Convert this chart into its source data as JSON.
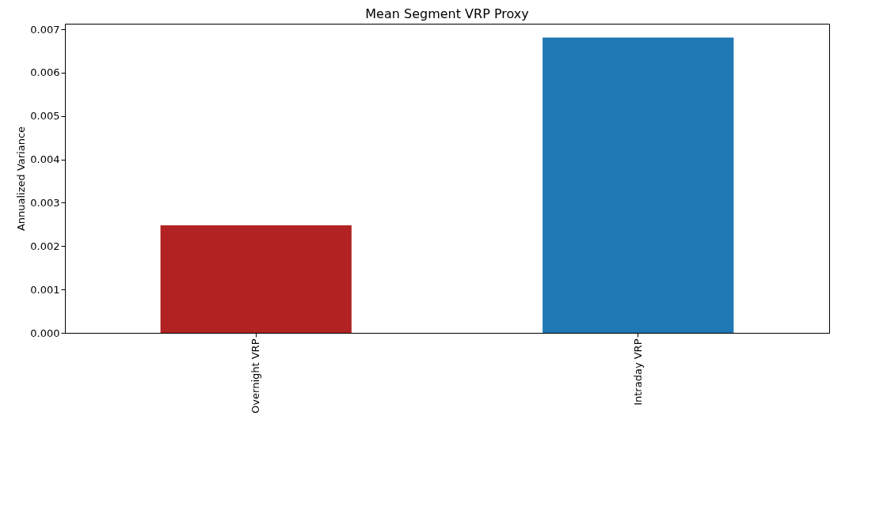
{
  "chart_data": {
    "type": "bar",
    "title": "Mean Segment VRP Proxy",
    "ylabel": "Annualized Variance",
    "categories": [
      "Overnight VRP",
      "Intraday VRP"
    ],
    "values": [
      0.00248,
      0.00681
    ],
    "colors": [
      "#b22222",
      "#1f77b4"
    ],
    "ylim": [
      0,
      0.00713
    ],
    "yticks": [
      {
        "value": 0,
        "label": "0.000"
      },
      {
        "value": 0.001,
        "label": "0.001"
      },
      {
        "value": 0.002,
        "label": "0.002"
      },
      {
        "value": 0.003,
        "label": "0.003"
      },
      {
        "value": 0.004,
        "label": "0.004"
      },
      {
        "value": 0.005,
        "label": "0.005"
      },
      {
        "value": 0.006,
        "label": "0.006"
      },
      {
        "value": 0.007,
        "label": "0.007"
      }
    ],
    "grid": false,
    "legend": false
  }
}
